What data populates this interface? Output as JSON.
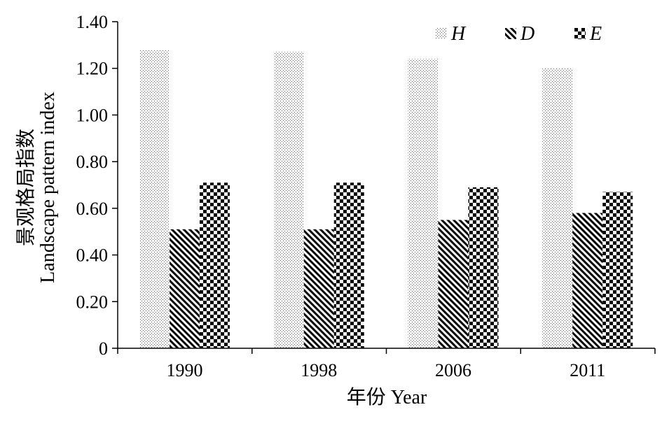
{
  "chart_data": {
    "type": "bar",
    "categories": [
      "1990",
      "1998",
      "2006",
      "2011"
    ],
    "series": [
      {
        "name": "H",
        "pattern": "dots",
        "values": [
          1.28,
          1.27,
          1.24,
          1.2
        ]
      },
      {
        "name": "D",
        "pattern": "diagonal-hatch",
        "values": [
          0.51,
          0.51,
          0.55,
          0.58
        ]
      },
      {
        "name": "E",
        "pattern": "checkerboard",
        "values": [
          0.71,
          0.71,
          0.69,
          0.67
        ]
      }
    ],
    "xlabel": "年份 Year",
    "ylabel_lines": [
      "景观格局指数",
      "Landscape pattern index"
    ],
    "ylim": [
      0,
      1.4
    ],
    "yticks": [
      "0",
      "0.20",
      "0.40",
      "0.60",
      "0.80",
      "1.00",
      "1.20",
      "1.40"
    ],
    "grid": false,
    "legend_position": "top-right",
    "colors": {
      "ink": "#000000",
      "background": "#ffffff"
    }
  }
}
